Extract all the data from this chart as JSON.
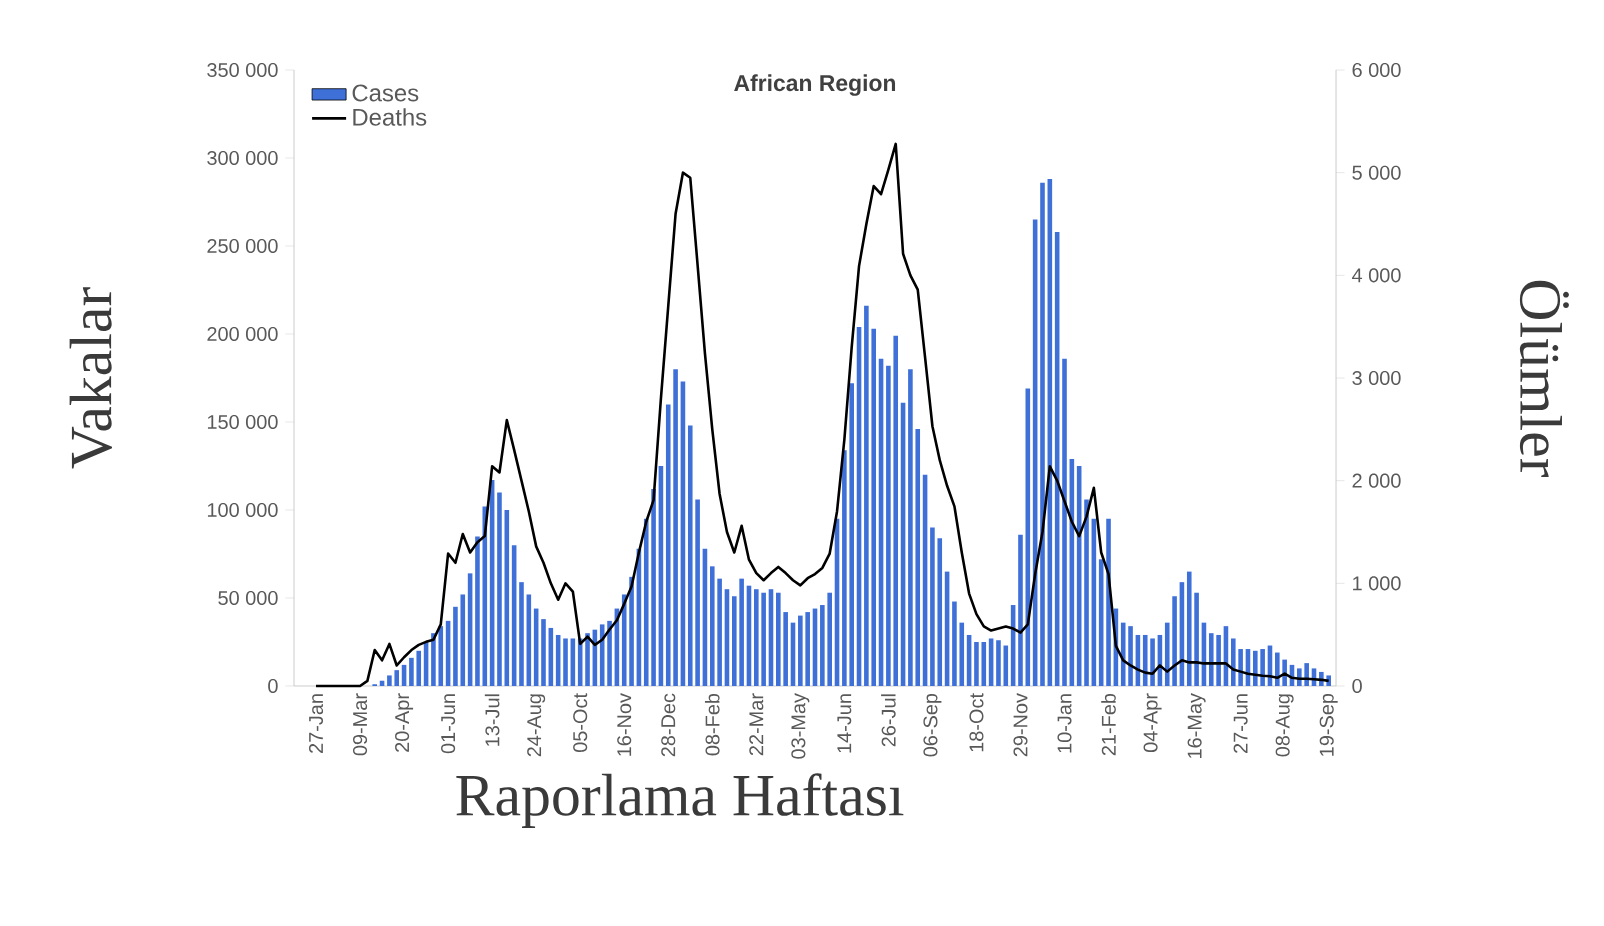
{
  "chart_data": {
    "type": "bar",
    "title": "African Region",
    "xlabel": "Raporlama Haftası",
    "ylabel": "Vakalar",
    "y2label": "Ölümler",
    "categories": [
      "27-Jan",
      null,
      null,
      null,
      null,
      null,
      "09-Mar",
      null,
      null,
      null,
      null,
      null,
      "20-Apr",
      null,
      null,
      null,
      null,
      null,
      "01-Jun",
      null,
      null,
      null,
      null,
      null,
      "13-Jul",
      null,
      null,
      null,
      null,
      null,
      "24-Aug",
      null,
      null,
      null,
      null,
      null,
      "05-Oct",
      null,
      null,
      null,
      null,
      null,
      "16-Nov",
      null,
      null,
      null,
      null,
      null,
      "28-Dec",
      null,
      null,
      null,
      null,
      null,
      "08-Feb",
      null,
      null,
      null,
      null,
      null,
      "22-Mar",
      null,
      null,
      null,
      null,
      null,
      "03-May",
      null,
      null,
      null,
      null,
      null,
      "14-Jun",
      null,
      null,
      null,
      null,
      null,
      "26-Jul",
      null,
      null,
      null,
      null,
      null,
      "06-Sep",
      null,
      null,
      null,
      null,
      null,
      "18-Oct",
      null,
      null,
      null,
      null,
      null,
      "29-Nov",
      null,
      null,
      null,
      null,
      null,
      "10-Jan",
      null,
      null,
      null,
      null,
      null,
      "21-Feb",
      null,
      null,
      null,
      null,
      null,
      "04-Apr",
      null,
      null,
      null,
      null,
      null,
      "16-May",
      null,
      null,
      null,
      null,
      null,
      "27-Jun",
      null,
      null,
      null,
      null,
      null,
      "08-Aug",
      null,
      null,
      null,
      null,
      null,
      "19-Sep"
    ],
    "series": [
      {
        "name": "Cases",
        "color": "#3e70d8",
        "values": [
          0,
          0,
          0,
          0,
          0,
          0,
          0,
          0,
          1000,
          3000,
          6000,
          9000,
          12000,
          16000,
          20000,
          25000,
          30000,
          34000,
          37000,
          45000,
          52000,
          64000,
          85000,
          102000,
          117000,
          110000,
          100000,
          80000,
          59000,
          52000,
          44000,
          38000,
          33000,
          29000,
          27000,
          27000,
          27000,
          30000,
          32000,
          35000,
          37000,
          44000,
          52000,
          62000,
          78000,
          95000,
          112000,
          125000,
          160000,
          180000,
          173000,
          148000,
          106000,
          78000,
          68000,
          61000,
          55000,
          51000,
          61000,
          57000,
          55000,
          53000,
          55000,
          53000,
          42000,
          36000,
          40000,
          42000,
          44000,
          46000,
          53000,
          95000,
          134000,
          172000,
          204000,
          216000,
          203000,
          186000,
          182000,
          199000,
          161000,
          180000,
          146000,
          120000,
          90000,
          84000,
          65000,
          48000,
          36000,
          29000,
          25000,
          25000,
          27000,
          26000,
          23000,
          46000,
          86000,
          169000,
          265000,
          286000,
          288000,
          258000,
          186000,
          129000,
          125000,
          106000,
          95000,
          72000,
          95000,
          44000,
          36000,
          34000,
          29000,
          29000,
          27000,
          29000,
          36000,
          51000,
          59000,
          65000,
          53000,
          36000,
          30000,
          29000,
          34000,
          27000,
          21000,
          21000,
          20000,
          21000,
          23000,
          19000,
          15000,
          12000,
          10000,
          13000,
          10000,
          8000,
          6000
        ]
      },
      {
        "name": "Deaths",
        "type": "line",
        "axis": "y2",
        "color": "#000000",
        "values": [
          0,
          0,
          0,
          0,
          0,
          0,
          0,
          50,
          350,
          250,
          410,
          200,
          280,
          350,
          400,
          430,
          450,
          600,
          1290,
          1200,
          1480,
          1300,
          1400,
          1460,
          2140,
          2080,
          2590,
          2300,
          2000,
          1700,
          1360,
          1200,
          1000,
          840,
          1000,
          920,
          410,
          480,
          400,
          450,
          550,
          640,
          800,
          970,
          1300,
          1600,
          1810,
          2800,
          3700,
          4600,
          5000,
          4950,
          4100,
          3240,
          2500,
          1870,
          1500,
          1300,
          1560,
          1230,
          1100,
          1030,
          1100,
          1160,
          1100,
          1030,
          980,
          1050,
          1090,
          1150,
          1290,
          1700,
          2400,
          3300,
          4090,
          4500,
          4870,
          4790,
          5030,
          5280,
          4210,
          4000,
          3860,
          3200,
          2530,
          2200,
          1950,
          1750,
          1300,
          900,
          700,
          580,
          540,
          560,
          580,
          560,
          520,
          600,
          1090,
          1500,
          2140,
          2000,
          1800,
          1600,
          1460,
          1650,
          1930,
          1300,
          1090,
          390,
          250,
          200,
          160,
          130,
          120,
          200,
          140,
          200,
          250,
          230,
          230,
          220,
          220,
          220,
          220,
          160,
          140,
          120,
          110,
          100,
          95,
          80,
          120,
          80,
          70,
          70,
          65,
          60,
          50
        ]
      }
    ],
    "ylim": [
      0,
      350000
    ],
    "yticks": [
      0,
      {
        "value": 50000,
        "label": "50 000"
      },
      {
        "value": 100000,
        "label": "100 000"
      },
      {
        "value": 150000,
        "label": "150 000"
      },
      {
        "value": 200000,
        "label": "200 000"
      },
      {
        "value": 250000,
        "label": "250 000"
      },
      {
        "value": 300000,
        "label": "300 000"
      },
      {
        "value": 350000,
        "label": "350 000"
      }
    ],
    "y2lim": [
      0,
      6000
    ],
    "y2ticks": [
      0,
      {
        "value": 1000,
        "label": "1 000"
      },
      {
        "value": 2000,
        "label": "2 000"
      },
      {
        "value": 3000,
        "label": "3 000"
      },
      {
        "value": 4000,
        "label": "4 000"
      },
      {
        "value": 5000,
        "label": "5 000"
      },
      {
        "value": 6000,
        "label": "6 000"
      }
    ],
    "legend": "top left"
  }
}
